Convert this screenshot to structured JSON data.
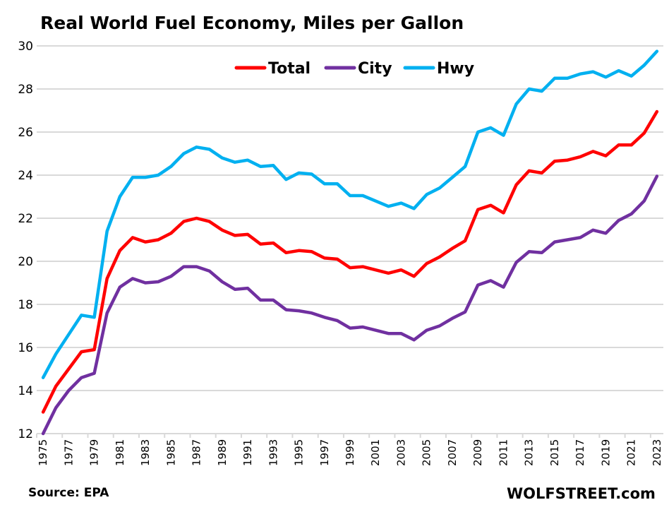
{
  "chart_data": {
    "type": "line",
    "title": "Real World Fuel Economy, Miles per Gallon",
    "xlabel": "",
    "ylabel": "",
    "ylim": [
      12,
      30
    ],
    "yticks": [
      12,
      14,
      16,
      18,
      20,
      22,
      24,
      26,
      28,
      30
    ],
    "grid": true,
    "legend_position": "top-center",
    "x": [
      1975,
      1976,
      1977,
      1978,
      1979,
      1980,
      1981,
      1982,
      1983,
      1984,
      1985,
      1986,
      1987,
      1988,
      1989,
      1990,
      1991,
      1992,
      1993,
      1994,
      1995,
      1996,
      1997,
      1998,
      1999,
      2000,
      2001,
      2002,
      2003,
      2004,
      2005,
      2006,
      2007,
      2008,
      2009,
      2010,
      2011,
      2012,
      2013,
      2014,
      2015,
      2016,
      2017,
      2018,
      2019,
      2020,
      2021,
      2022,
      2023
    ],
    "xtick_labels": [
      "1975",
      "1977",
      "1979",
      "1981",
      "1983",
      "1985",
      "1987",
      "1989",
      "1991",
      "1993",
      "1995",
      "1997",
      "1999",
      "2001",
      "2003",
      "2005",
      "2007",
      "2009",
      "2011",
      "2013",
      "2015",
      "2017",
      "2019",
      "2021",
      "2023"
    ],
    "series": [
      {
        "name": "Total",
        "color": "#FF0000",
        "values": [
          13.0,
          14.2,
          15.0,
          15.8,
          15.9,
          19.2,
          20.5,
          21.1,
          20.9,
          21.0,
          21.3,
          21.85,
          22.0,
          21.85,
          21.45,
          21.2,
          21.25,
          20.8,
          20.85,
          20.4,
          20.5,
          20.45,
          20.15,
          20.1,
          19.7,
          19.75,
          19.6,
          19.45,
          19.6,
          19.3,
          19.9,
          20.2,
          20.6,
          20.95,
          22.4,
          22.6,
          22.25,
          23.55,
          24.2,
          24.1,
          24.65,
          24.7,
          24.85,
          25.1,
          24.9,
          25.4,
          25.4,
          25.95,
          26.95
        ]
      },
      {
        "name": "City",
        "color": "#7030A0",
        "values": [
          12.0,
          13.2,
          14.0,
          14.6,
          14.8,
          17.6,
          18.8,
          19.2,
          19.0,
          19.05,
          19.3,
          19.75,
          19.75,
          19.55,
          19.05,
          18.7,
          18.75,
          18.2,
          18.2,
          17.75,
          17.7,
          17.6,
          17.4,
          17.25,
          16.9,
          16.95,
          16.8,
          16.65,
          16.65,
          16.35,
          16.8,
          17.0,
          17.35,
          17.65,
          18.9,
          19.1,
          18.8,
          19.95,
          20.45,
          20.4,
          20.9,
          21.0,
          21.1,
          21.45,
          21.3,
          21.9,
          22.2,
          22.8,
          23.95
        ]
      },
      {
        "name": "Hwy",
        "color": "#00B0F0",
        "values": [
          14.6,
          15.7,
          16.6,
          17.5,
          17.4,
          21.4,
          23.0,
          23.9,
          23.9,
          24.0,
          24.4,
          25.0,
          25.3,
          25.2,
          24.8,
          24.6,
          24.7,
          24.4,
          24.45,
          23.8,
          24.1,
          24.05,
          23.6,
          23.6,
          23.05,
          23.05,
          22.8,
          22.55,
          22.7,
          22.45,
          23.1,
          23.4,
          23.9,
          24.4,
          26.0,
          26.2,
          25.85,
          27.3,
          28.0,
          27.9,
          28.5,
          28.5,
          28.7,
          28.8,
          28.55,
          28.85,
          28.6,
          29.1,
          29.75
        ]
      }
    ]
  },
  "footer": {
    "source": "Source: EPA",
    "credit": "WOLFSTREET.com"
  }
}
